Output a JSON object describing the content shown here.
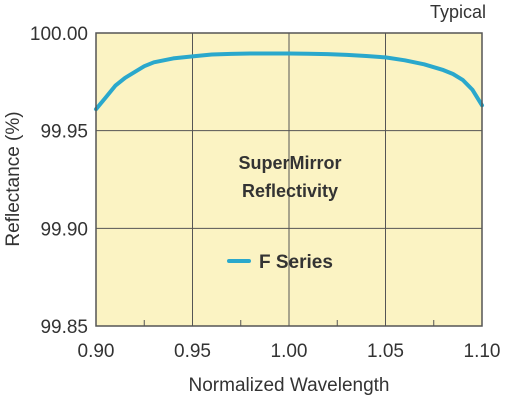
{
  "chart_data": {
    "type": "line",
    "title_lines": [
      "SuperMirror",
      "Reflectivity"
    ],
    "corner_label": "Typical",
    "xlabel": "Normalized Wavelength",
    "ylabel": "Reflectance (%)",
    "xlim": [
      0.9,
      1.1
    ],
    "ylim": [
      99.85,
      100.0
    ],
    "x_ticks": [
      0.9,
      0.95,
      1.0,
      1.05,
      1.1
    ],
    "x_tick_labels": [
      "0.90",
      "0.95",
      "1.00",
      "1.05",
      "1.10"
    ],
    "y_ticks": [
      99.85,
      99.9,
      99.95,
      100.0
    ],
    "y_tick_labels": [
      "99.85",
      "99.90",
      "99.95",
      "100.00"
    ],
    "grid": true,
    "background_color": "#fbf3c3",
    "legend_position": "center",
    "series": [
      {
        "name": "F Series",
        "color": "#2aa8cc",
        "x": [
          0.9,
          0.905,
          0.91,
          0.915,
          0.92,
          0.925,
          0.93,
          0.94,
          0.95,
          0.96,
          0.97,
          0.98,
          0.99,
          1.0,
          1.01,
          1.02,
          1.03,
          1.04,
          1.05,
          1.06,
          1.07,
          1.08,
          1.085,
          1.09,
          1.095,
          1.1
        ],
        "y": [
          99.961,
          99.967,
          99.973,
          99.977,
          99.98,
          99.983,
          99.985,
          99.987,
          99.988,
          99.989,
          99.9893,
          99.9895,
          99.9895,
          99.9895,
          99.9894,
          99.9892,
          99.9888,
          99.9882,
          99.9875,
          99.986,
          99.984,
          99.981,
          99.979,
          99.976,
          99.971,
          99.963
        ]
      }
    ]
  }
}
